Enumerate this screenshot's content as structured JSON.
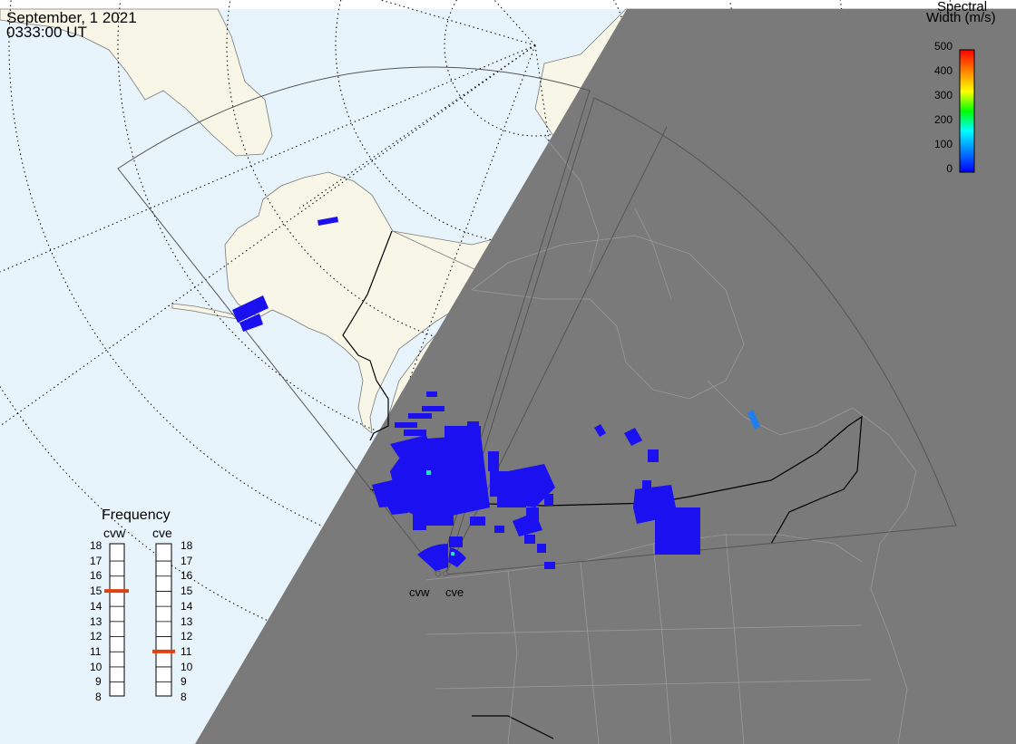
{
  "header": {
    "date": "September, 1 2021",
    "time": "0333:00 UT"
  },
  "colorbar": {
    "title_line1": "Spectral",
    "title_line2": "Width (m/s)",
    "ticks": [
      "500",
      "400",
      "300",
      "200",
      "100",
      "0"
    ],
    "gradient": [
      "#ff0000",
      "#ff8000",
      "#ffff00",
      "#00ff00",
      "#00ffff",
      "#0080ff",
      "#0000ff"
    ]
  },
  "frequency": {
    "title": "Frequency",
    "radars": [
      {
        "code": "cvw",
        "value_mhz": 15
      },
      {
        "code": "cve",
        "value_mhz": 11
      }
    ],
    "scale_labels": [
      "18",
      "17",
      "16",
      "15",
      "14",
      "13",
      "12",
      "11",
      "10",
      "9",
      "8"
    ],
    "marker_color": "#e04010"
  },
  "radar_labels": [
    "cvw",
    "cve"
  ],
  "colors": {
    "ocean": "#e8f4fc",
    "land": "#f8f6e6",
    "night": "#7a7a7a",
    "echo": "#1a10f0",
    "echo_alt": "#1e80f0",
    "echo_cyan": "#20e0d0"
  }
}
